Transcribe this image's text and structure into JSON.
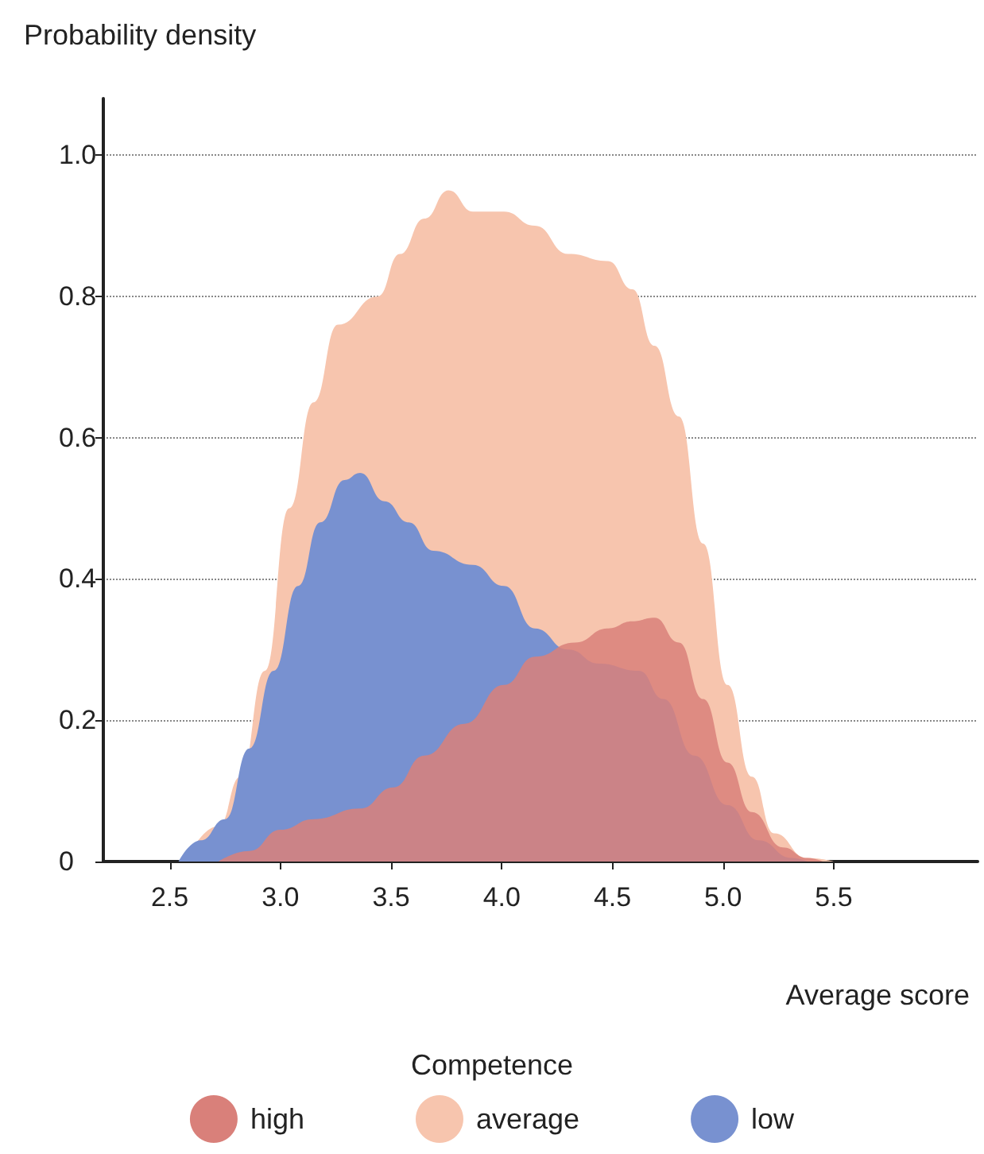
{
  "chart_data": {
    "type": "area",
    "xlabel": "Average score",
    "ylabel": "Probability density",
    "legend_title": "Competence",
    "legend": "bottom",
    "grid": "y",
    "xlim": [
      2.2,
      6.15
    ],
    "ylim": [
      0,
      1.08
    ],
    "xticks": [
      2.5,
      {
        "value": 3,
        "label": "3.0"
      },
      3.5,
      {
        "value": 4,
        "label": "4.0"
      },
      4.5,
      {
        "value": 5,
        "label": "5.0"
      },
      5.5
    ],
    "yticks": [
      0,
      0.2,
      0.4,
      0.6,
      0.8,
      {
        "value": 1,
        "label": "1.0"
      }
    ],
    "series": [
      {
        "name": "high",
        "color": "#d9807a",
        "x": [
          2.72,
          2.86,
          3.0,
          3.15,
          3.36,
          3.51,
          3.65,
          3.83,
          4.01,
          4.15,
          4.33,
          4.48,
          4.59,
          4.69,
          4.8,
          4.91,
          5.02,
          5.13,
          5.27,
          5.38,
          5.45
        ],
        "values": [
          0,
          0.015,
          0.045,
          0.06,
          0.075,
          0.105,
          0.15,
          0.195,
          0.25,
          0.29,
          0.31,
          0.33,
          0.34,
          0.345,
          0.31,
          0.23,
          0.14,
          0.07,
          0.02,
          0.005,
          0
        ]
      },
      {
        "name": "average",
        "color": "#f7c5ae",
        "x": [
          2.57,
          2.72,
          2.82,
          2.93,
          3.04,
          3.15,
          3.26,
          3.44,
          3.54,
          3.65,
          3.76,
          3.87,
          4.01,
          4.15,
          4.3,
          4.48,
          4.59,
          4.69,
          4.8,
          4.91,
          5.02,
          5.13,
          5.23,
          5.38,
          5.5
        ],
        "values": [
          0,
          0.05,
          0.12,
          0.27,
          0.5,
          0.65,
          0.76,
          0.8,
          0.86,
          0.91,
          0.95,
          0.92,
          0.92,
          0.9,
          0.86,
          0.85,
          0.81,
          0.73,
          0.63,
          0.45,
          0.25,
          0.12,
          0.04,
          0.005,
          0
        ]
      },
      {
        "name": "low",
        "color": "#7891d0",
        "x": [
          2.54,
          2.64,
          2.75,
          2.86,
          2.97,
          3.08,
          3.18,
          3.29,
          3.36,
          3.47,
          3.58,
          3.69,
          3.87,
          4.01,
          4.15,
          4.3,
          4.44,
          4.62,
          4.73,
          4.87,
          5.02,
          5.16,
          5.31,
          5.38
        ],
        "values": [
          0,
          0.03,
          0.06,
          0.16,
          0.27,
          0.39,
          0.48,
          0.54,
          0.55,
          0.51,
          0.48,
          0.44,
          0.42,
          0.39,
          0.33,
          0.3,
          0.28,
          0.27,
          0.23,
          0.15,
          0.08,
          0.03,
          0.005,
          0
        ]
      }
    ]
  }
}
